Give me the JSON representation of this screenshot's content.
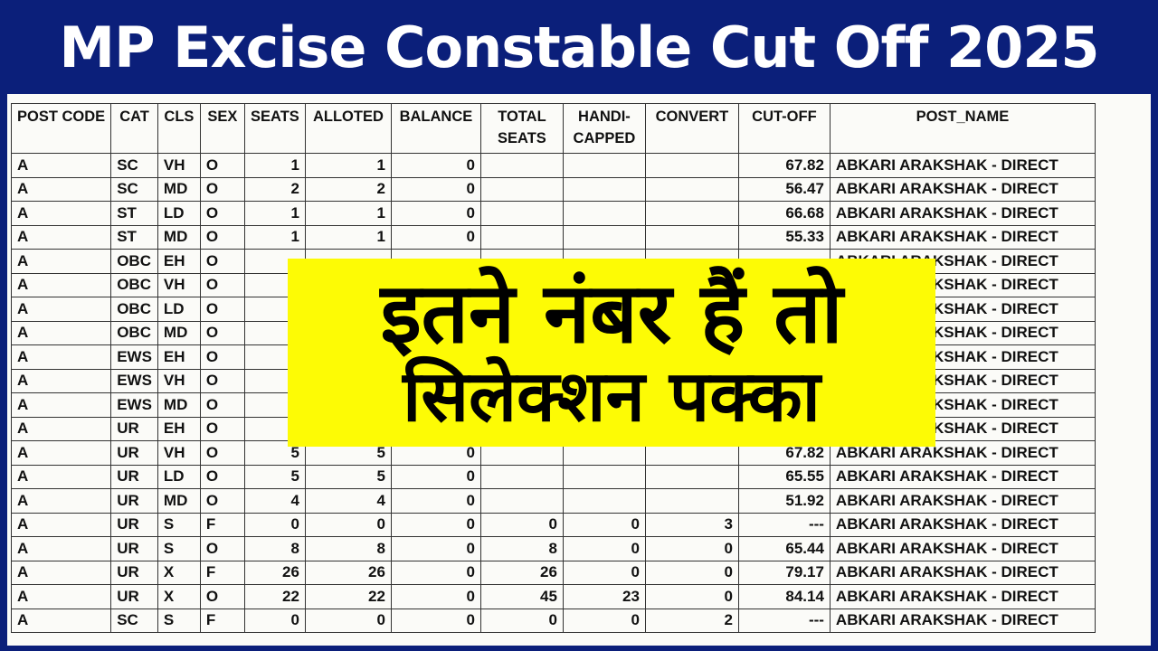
{
  "title": "MP Excise Constable Cut Off 2025",
  "overlay": {
    "line1": "इतने नंबर हैं तो",
    "line2": "सिलेक्शन पक्का"
  },
  "colors": {
    "frame": "#0b1f7a",
    "overlay_bg": "#fdfb05",
    "title_text": "#ffffff"
  },
  "table": {
    "headers": [
      "POST CODE",
      "CAT",
      "CLS",
      "SEX",
      "SEATS",
      "ALLOTED",
      "BALANCE",
      "TOTAL SEATS",
      "HANDI- CAPPED",
      "CONVERT",
      "CUT-OFF",
      "POST_NAME"
    ],
    "rows": [
      [
        "A",
        "SC",
        "VH",
        "O",
        "1",
        "1",
        "0",
        "",
        "",
        "",
        "67.82",
        "ABKARI ARAKSHAK - DIRECT"
      ],
      [
        "A",
        "SC",
        "MD",
        "O",
        "2",
        "2",
        "0",
        "",
        "",
        "",
        "56.47",
        "ABKARI ARAKSHAK - DIRECT"
      ],
      [
        "A",
        "ST",
        "LD",
        "O",
        "1",
        "1",
        "0",
        "",
        "",
        "",
        "66.68",
        "ABKARI ARAKSHAK - DIRECT"
      ],
      [
        "A",
        "ST",
        "MD",
        "O",
        "1",
        "1",
        "0",
        "",
        "",
        "",
        "55.33",
        "ABKARI ARAKSHAK - DIRECT"
      ],
      [
        "A",
        "OBC",
        "EH",
        "O",
        "",
        "",
        "",
        "",
        "",
        "",
        "",
        "ABKARI ARAKSHAK - DIRECT"
      ],
      [
        "A",
        "OBC",
        "VH",
        "O",
        "",
        "",
        "",
        "",
        "",
        "",
        "",
        "ABKARI ARAKSHAK - DIRECT"
      ],
      [
        "A",
        "OBC",
        "LD",
        "O",
        "",
        "",
        "",
        "",
        "",
        "",
        "",
        "ABKARI ARAKSHAK - DIRECT"
      ],
      [
        "A",
        "OBC",
        "MD",
        "O",
        "",
        "",
        "",
        "",
        "",
        "",
        "",
        "ABKARI ARAKSHAK - DIRECT"
      ],
      [
        "A",
        "EWS",
        "EH",
        "O",
        "",
        "",
        "",
        "",
        "",
        "",
        "",
        "ABKARI ARAKSHAK - DIRECT"
      ],
      [
        "A",
        "EWS",
        "VH",
        "O",
        "",
        "",
        "",
        "",
        "",
        "",
        "",
        "ABKARI ARAKSHAK - DIRECT"
      ],
      [
        "A",
        "EWS",
        "MD",
        "O",
        "",
        "",
        "",
        "",
        "",
        "",
        "",
        "ABKARI ARAKSHAK - DIRECT"
      ],
      [
        "A",
        "UR",
        "EH",
        "O",
        "",
        "",
        "",
        "",
        "",
        "",
        "",
        "ABKARI ARAKSHAK - DIRECT"
      ],
      [
        "A",
        "UR",
        "VH",
        "O",
        "5",
        "5",
        "0",
        "",
        "",
        "",
        "67.82",
        "ABKARI ARAKSHAK - DIRECT"
      ],
      [
        "A",
        "UR",
        "LD",
        "O",
        "5",
        "5",
        "0",
        "",
        "",
        "",
        "65.55",
        "ABKARI ARAKSHAK - DIRECT"
      ],
      [
        "A",
        "UR",
        "MD",
        "O",
        "4",
        "4",
        "0",
        "",
        "",
        "",
        "51.92",
        "ABKARI ARAKSHAK - DIRECT"
      ],
      [
        "A",
        "UR",
        "S",
        "F",
        "0",
        "0",
        "0",
        "0",
        "0",
        "3",
        "---",
        "ABKARI ARAKSHAK - DIRECT"
      ],
      [
        "A",
        "UR",
        "S",
        "O",
        "8",
        "8",
        "0",
        "8",
        "0",
        "0",
        "65.44",
        "ABKARI ARAKSHAK - DIRECT"
      ],
      [
        "A",
        "UR",
        "X",
        "F",
        "26",
        "26",
        "0",
        "26",
        "0",
        "0",
        "79.17",
        "ABKARI ARAKSHAK - DIRECT"
      ],
      [
        "A",
        "UR",
        "X",
        "O",
        "22",
        "22",
        "0",
        "45",
        "23",
        "0",
        "84.14",
        "ABKARI ARAKSHAK - DIRECT"
      ],
      [
        "A",
        "SC",
        "S",
        "F",
        "0",
        "0",
        "0",
        "0",
        "0",
        "2",
        "---",
        "ABKARI ARAKSHAK - DIRECT"
      ]
    ]
  }
}
